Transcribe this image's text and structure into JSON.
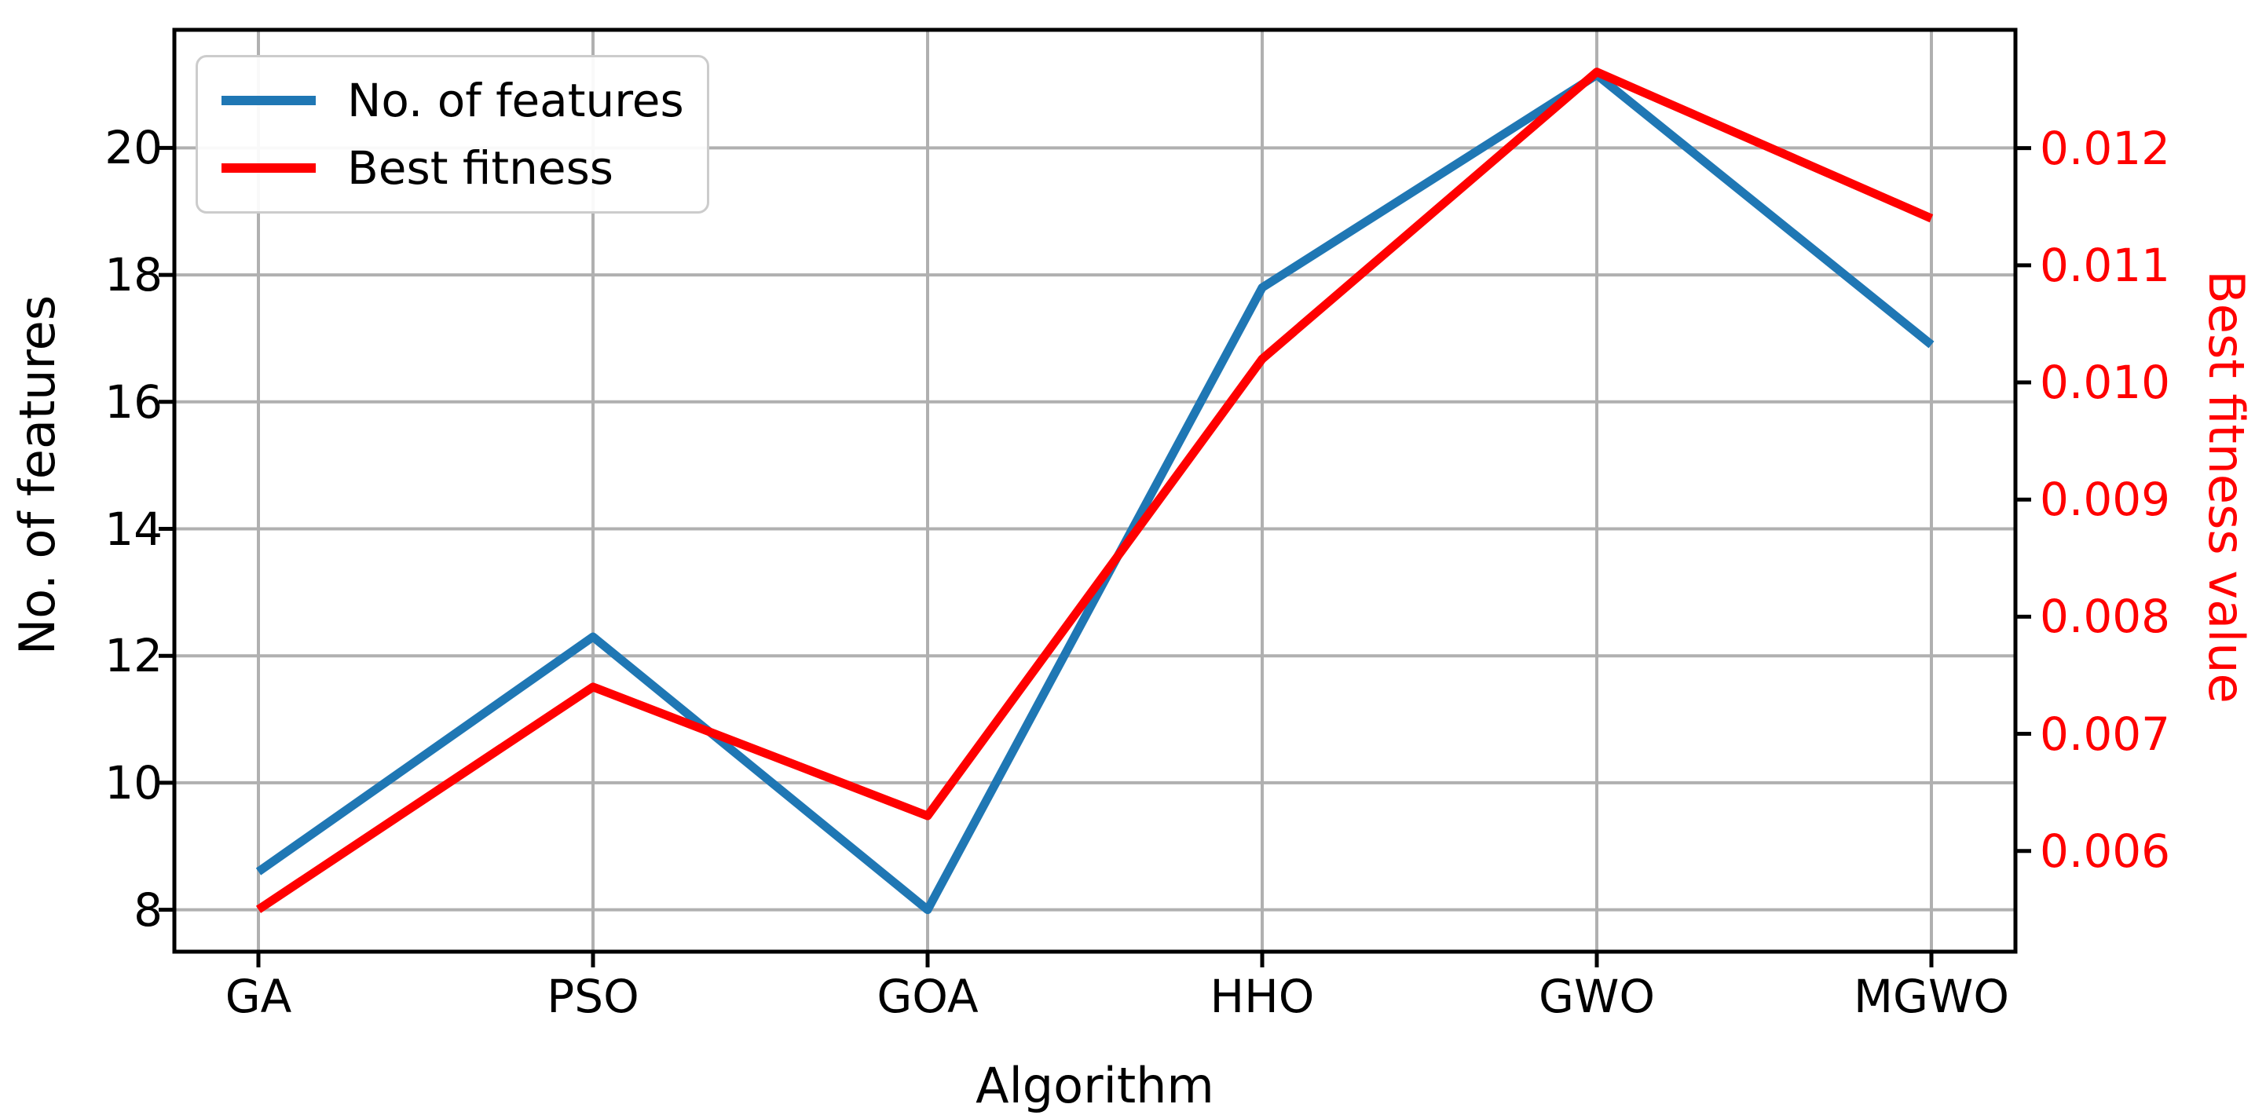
{
  "figure": {
    "xlabel": "Algorithm",
    "left_axis_label": "No. of features",
    "right_axis_label": "Best fitness value"
  },
  "legend": {
    "items": [
      {
        "label": "No. of features",
        "color": "#1f77b4"
      },
      {
        "label": "Best fitness",
        "color": "#ff0000"
      }
    ]
  },
  "chart_data": {
    "type": "line",
    "categories": [
      "GA",
      "PSO",
      "GOA",
      "HHO",
      "GWO",
      "MGWO"
    ],
    "series": [
      {
        "name": "No. of features",
        "axis": "left",
        "color": "#1f77b4",
        "values": [
          8.6,
          12.3,
          8.0,
          17.8,
          21.15,
          16.9
        ]
      },
      {
        "name": "Best fitness",
        "axis": "right",
        "color": "#ff0000",
        "values": [
          0.0055,
          0.0074,
          0.0063,
          0.0102,
          0.01265,
          0.0114
        ]
      }
    ],
    "title": "",
    "xlabel": "Algorithm",
    "left_axis": {
      "label": "No. of features",
      "ticks": [
        {
          "value": 8,
          "label": "8"
        },
        {
          "value": 10,
          "label": "10"
        },
        {
          "value": 12,
          "label": "12"
        },
        {
          "value": 14,
          "label": "14"
        },
        {
          "value": 16,
          "label": "16"
        },
        {
          "value": 18,
          "label": "18"
        },
        {
          "value": 20,
          "label": "20"
        }
      ],
      "ylim": [
        7.34,
        21.86
      ],
      "color": "#000000"
    },
    "right_axis": {
      "label": "Best fitness value",
      "ticks": [
        {
          "value": 0.006,
          "label": "0.006"
        },
        {
          "value": 0.007,
          "label": "0.007"
        },
        {
          "value": 0.008,
          "label": "0.008"
        },
        {
          "value": 0.009,
          "label": "0.009"
        },
        {
          "value": 0.01,
          "label": "0.010"
        },
        {
          "value": 0.011,
          "label": "0.011"
        },
        {
          "value": 0.012,
          "label": "0.012"
        }
      ],
      "ylim": [
        0.00514,
        0.01301
      ],
      "color": "#ff0000"
    },
    "grid": true,
    "grid_color": "#b0b0b0",
    "legend_position": "upper left"
  }
}
